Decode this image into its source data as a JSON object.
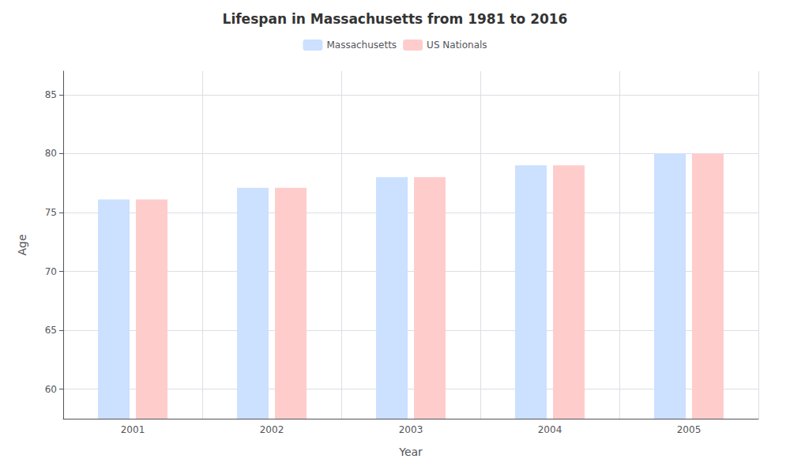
{
  "chart_data": {
    "type": "bar",
    "title": "Lifespan in Massachusetts from 1981 to 2016",
    "xlabel": "Year",
    "ylabel": "Age",
    "categories": [
      2001,
      2002,
      2003,
      2004,
      2005
    ],
    "series": [
      {
        "name": "Massachusetts",
        "color": "#cce0ff",
        "values": [
          76.1,
          77.1,
          78.0,
          79.0,
          80.0
        ]
      },
      {
        "name": "US Nationals",
        "color": "#ffcccc",
        "values": [
          76.1,
          77.1,
          78.0,
          79.0,
          80.0
        ]
      }
    ],
    "ylim": [
      57.5,
      87
    ],
    "yticks": [
      60,
      65,
      70,
      75,
      80,
      85
    ],
    "grid": true,
    "legend": "top"
  }
}
